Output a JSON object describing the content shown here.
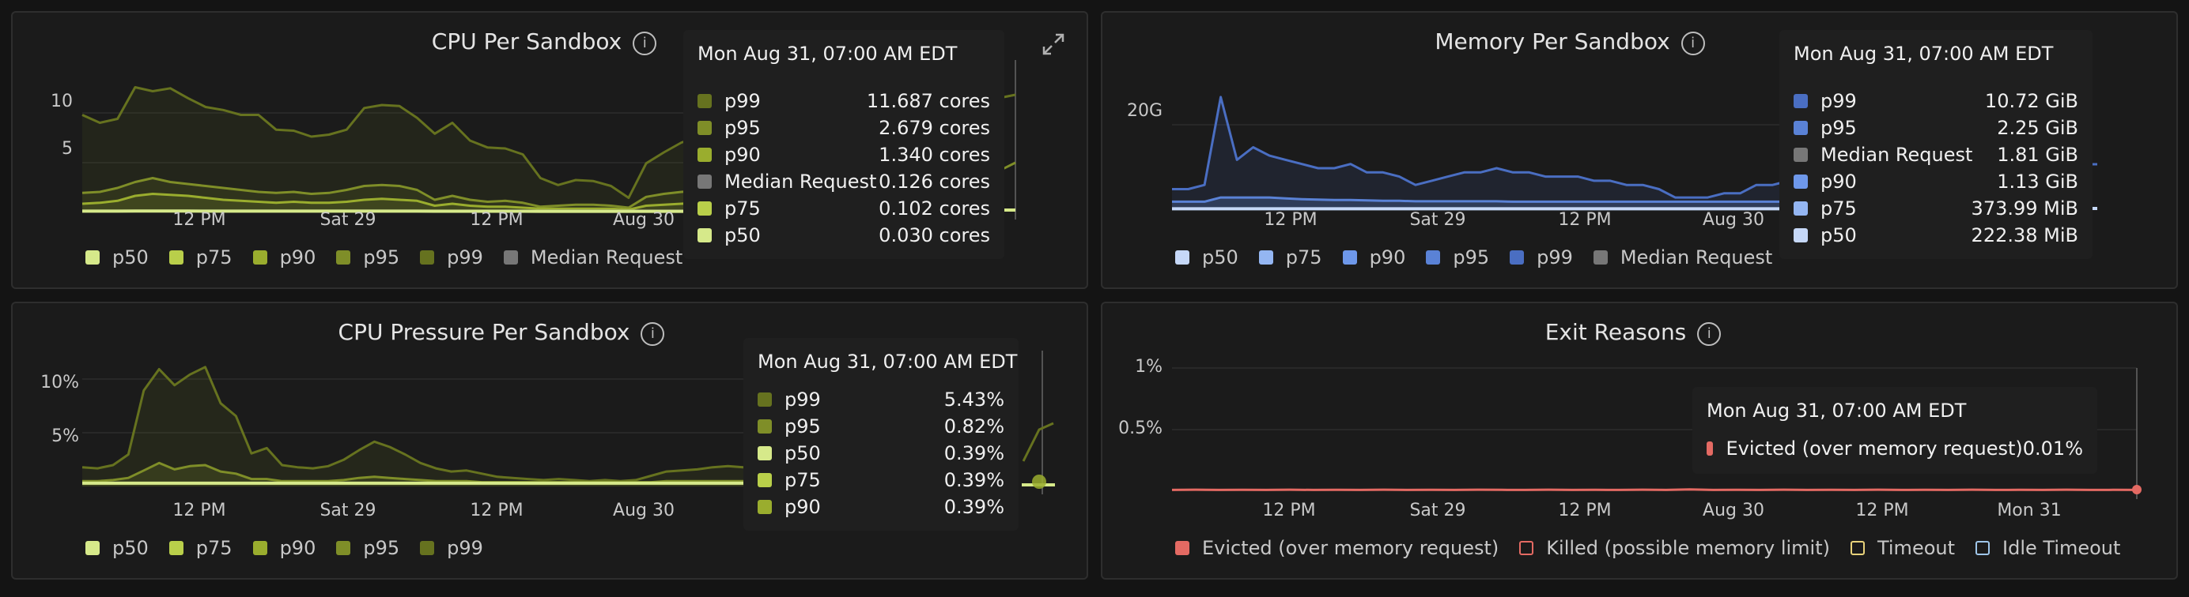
{
  "colors": {
    "p50": "#d6e98a",
    "p75": "#b9cf4a",
    "p90": "#9aad2e",
    "p95": "#7f8e28",
    "p99": "#66721f",
    "median": "#777777",
    "m_p50": "#c6d8f8",
    "m_p75": "#94b6f2",
    "m_p90": "#6e98ea",
    "m_p95": "#5a82d6",
    "m_p99": "#4a6ec2",
    "evicted": "#e46a63",
    "killed": "#e46a63",
    "timeout": "#e8d27a",
    "idle": "#9fc6ea"
  },
  "icons": {
    "info": "info-icon",
    "expand": "expand-icon"
  },
  "cpu": {
    "title": "CPU Per Sandbox",
    "yticks": [
      "10",
      "5"
    ],
    "xticks": [
      "12 PM",
      "Sat 29",
      "12 PM",
      "Aug 30"
    ],
    "legend": [
      "p50",
      "p75",
      "p90",
      "p95",
      "p99",
      "Median Request"
    ],
    "tooltip": {
      "title": "Mon Aug 31, 07:00 AM EDT",
      "rows": [
        {
          "name": "p99",
          "value": "11.687 cores"
        },
        {
          "name": "p95",
          "value": "2.679 cores"
        },
        {
          "name": "p90",
          "value": "1.340 cores"
        },
        {
          "name": "Median Request",
          "value": "0.126 cores"
        },
        {
          "name": "p75",
          "value": "0.102 cores"
        },
        {
          "name": "p50",
          "value": "0.030 cores"
        }
      ]
    },
    "series": {
      "p99": [
        9.8,
        9.0,
        9.4,
        12.6,
        12.2,
        12.5,
        11.5,
        10.6,
        10.3,
        9.8,
        9.8,
        8.3,
        8.2,
        7.6,
        7.8,
        8.3,
        10.5,
        10.8,
        10.7,
        9.5,
        7.9,
        9.0,
        7.2,
        6.5,
        6.4,
        5.8,
        3.4,
        2.7,
        3.2,
        3.1,
        2.6,
        1.4,
        4.9,
        6.0,
        7.0,
        7.6
      ],
      "p95": [
        1.9,
        2.0,
        2.4,
        3.0,
        3.4,
        3.0,
        2.8,
        2.6,
        2.4,
        2.2,
        2.0,
        1.9,
        2.0,
        1.8,
        1.9,
        2.2,
        2.6,
        2.7,
        2.6,
        2.2,
        1.2,
        1.6,
        1.2,
        1.0,
        1.1,
        0.9,
        0.5,
        0.6,
        0.7,
        0.7,
        0.6,
        0.4,
        1.5,
        1.8,
        2.0,
        2.1
      ],
      "p90": [
        0.8,
        0.9,
        1.1,
        1.6,
        1.8,
        1.7,
        1.6,
        1.4,
        1.2,
        1.1,
        1.0,
        0.9,
        1.0,
        0.9,
        0.9,
        1.0,
        1.2,
        1.3,
        1.2,
        1.1,
        0.6,
        0.8,
        0.6,
        0.5,
        0.5,
        0.4,
        0.3,
        0.3,
        0.3,
        0.3,
        0.3,
        0.2,
        0.6,
        0.7,
        0.8,
        0.9
      ],
      "median": [
        0.13,
        0.13,
        0.13,
        0.13,
        0.13,
        0.13,
        0.13,
        0.13,
        0.13,
        0.13,
        0.13,
        0.13,
        0.13,
        0.13,
        0.13,
        0.13,
        0.13,
        0.13,
        0.13,
        0.13,
        0.13,
        0.13,
        0.13,
        0.13,
        0.13,
        0.13,
        0.13,
        0.13,
        0.13,
        0.13,
        0.13,
        0.13,
        0.13,
        0.13,
        0.13,
        0.13
      ],
      "p50": [
        0.05,
        0.05,
        0.05,
        0.06,
        0.06,
        0.06,
        0.06,
        0.05,
        0.05,
        0.05,
        0.05,
        0.05,
        0.05,
        0.05,
        0.05,
        0.05,
        0.05,
        0.05,
        0.05,
        0.05,
        0.04,
        0.04,
        0.04,
        0.04,
        0.04,
        0.04,
        0.03,
        0.03,
        0.03,
        0.03,
        0.03,
        0.03,
        0.03,
        0.03,
        0.03,
        0.03
      ]
    }
  },
  "memory": {
    "title": "Memory Per Sandbox",
    "yticks": [
      "20G"
    ],
    "xticks": [
      "12 PM",
      "Sat 29",
      "12 PM",
      "Aug 30"
    ],
    "legend": [
      "p50",
      "p75",
      "p90",
      "p95",
      "p99",
      "Median Request"
    ],
    "tooltip": {
      "title": "Mon Aug 31, 07:00 AM EDT",
      "rows": [
        {
          "name": "p99",
          "value": "10.72 GiB"
        },
        {
          "name": "p95",
          "value": "2.25 GiB"
        },
        {
          "name": "Median Request",
          "value": "1.81 GiB"
        },
        {
          "name": "p90",
          "value": "1.13 GiB"
        },
        {
          "name": "p75",
          "value": "373.99 MiB"
        },
        {
          "name": "p50",
          "value": "222.38 MiB"
        }
      ]
    },
    "series": {
      "p99": [
        5,
        5,
        6,
        27,
        12,
        15,
        13,
        12,
        11,
        10,
        10,
        11,
        9,
        9,
        8,
        6,
        7,
        8,
        9,
        9,
        10,
        9,
        9,
        8,
        8,
        8,
        7,
        7,
        6,
        6,
        5,
        3,
        3,
        3,
        4,
        4,
        6,
        6,
        7
      ],
      "p95": [
        2,
        2,
        2,
        3,
        3,
        3,
        3,
        2.8,
        2.6,
        2.5,
        2.4,
        2.4,
        2.3,
        2.2,
        2.2,
        2.1,
        2.1,
        2.1,
        2.1,
        2.1,
        2.1,
        2,
        2,
        2,
        2,
        2,
        2,
        2,
        2,
        2,
        2,
        2,
        2,
        2,
        2,
        2,
        2,
        2,
        2
      ],
      "p50": [
        0.3,
        0.3,
        0.3,
        0.3,
        0.3,
        0.3,
        0.3,
        0.3,
        0.3,
        0.3,
        0.3,
        0.3,
        0.3,
        0.3,
        0.3,
        0.3,
        0.3,
        0.3,
        0.3,
        0.3,
        0.3,
        0.3,
        0.3,
        0.3,
        0.3,
        0.3,
        0.3,
        0.3,
        0.3,
        0.3,
        0.3,
        0.3,
        0.3,
        0.3,
        0.3,
        0.3,
        0.3,
        0.3,
        0.3
      ]
    }
  },
  "pressure": {
    "title": "CPU Pressure Per Sandbox",
    "yticks": [
      "10%",
      "5%"
    ],
    "xticks": [
      "12 PM",
      "Sat 29",
      "12 PM",
      "Aug 30"
    ],
    "legend": [
      "p50",
      "p75",
      "p90",
      "p95",
      "p99"
    ],
    "tooltip": {
      "title": "Mon Aug 31, 07:00 AM EDT",
      "rows": [
        {
          "name": "p99",
          "value": "5.43%"
        },
        {
          "name": "p95",
          "value": "0.82%"
        },
        {
          "name": "p50",
          "value": "0.39%"
        },
        {
          "name": "p75",
          "value": "0.39%"
        },
        {
          "name": "p90",
          "value": "0.39%"
        }
      ]
    },
    "series": {
      "p99": [
        1.8,
        1.7,
        2.0,
        3.0,
        9.0,
        11.0,
        9.5,
        10.5,
        11.2,
        7.8,
        6.6,
        3.1,
        3.6,
        2.0,
        1.8,
        1.7,
        1.9,
        2.5,
        3.4,
        4.2,
        3.7,
        3.0,
        2.2,
        1.7,
        1.4,
        1.5,
        1.2,
        0.9,
        0.8,
        0.7,
        0.6,
        0.7,
        0.6,
        0.5,
        0.6,
        0.5,
        0.6,
        1.0,
        1.4,
        1.5,
        1.6,
        1.8,
        1.9,
        1.8
      ],
      "p95": [
        0.5,
        0.5,
        0.6,
        0.8,
        1.5,
        2.2,
        1.6,
        1.9,
        2.0,
        1.4,
        1.2,
        0.7,
        0.7,
        0.5,
        0.5,
        0.5,
        0.5,
        0.6,
        0.8,
        0.9,
        0.8,
        0.7,
        0.6,
        0.5,
        0.5,
        0.5,
        0.4,
        0.4,
        0.4,
        0.4,
        0.4,
        0.4,
        0.4,
        0.4,
        0.4,
        0.4,
        0.4,
        0.4,
        0.5,
        0.5,
        0.5,
        0.5,
        0.5,
        0.5
      ],
      "p50": [
        0.3,
        0.3,
        0.3,
        0.3,
        0.3,
        0.3,
        0.3,
        0.3,
        0.3,
        0.3,
        0.3,
        0.3,
        0.3,
        0.3,
        0.3,
        0.3,
        0.3,
        0.3,
        0.3,
        0.3,
        0.3,
        0.3,
        0.3,
        0.3,
        0.3,
        0.3,
        0.3,
        0.3,
        0.3,
        0.3,
        0.3,
        0.3,
        0.3,
        0.3,
        0.3,
        0.3,
        0.3,
        0.3,
        0.3,
        0.3,
        0.3,
        0.3,
        0.3,
        0.3
      ]
    }
  },
  "exit": {
    "title": "Exit Reasons",
    "yticks": [
      "1%",
      "0.5%"
    ],
    "xticks": [
      "12 PM",
      "Sat 29",
      "12 PM",
      "Aug 30",
      "12 PM",
      "Mon 31"
    ],
    "legend": [
      "Evicted (over memory request)",
      "Killed (possible memory limit)",
      "Timeout",
      "Idle Timeout"
    ],
    "tooltip": {
      "title": "Mon Aug 31, 07:00 AM EDT",
      "rows": [
        {
          "name": "Evicted (over memory request)",
          "value": "0.01%"
        }
      ]
    },
    "series": {
      "evicted": [
        0.01,
        0.012,
        0.01,
        0.011,
        0.01,
        0.012,
        0.01,
        0.011,
        0.01,
        0.012,
        0.01,
        0.011,
        0.01,
        0.012,
        0.011,
        0.01,
        0.012,
        0.01,
        0.011,
        0.01,
        0.012,
        0.01,
        0.015,
        0.01,
        0.011,
        0.01,
        0.012,
        0.01,
        0.011,
        0.01,
        0.012,
        0.01,
        0.011,
        0.01,
        0.012,
        0.01,
        0.011,
        0.01,
        0.012,
        0.01,
        0.011,
        0.01
      ]
    }
  }
}
